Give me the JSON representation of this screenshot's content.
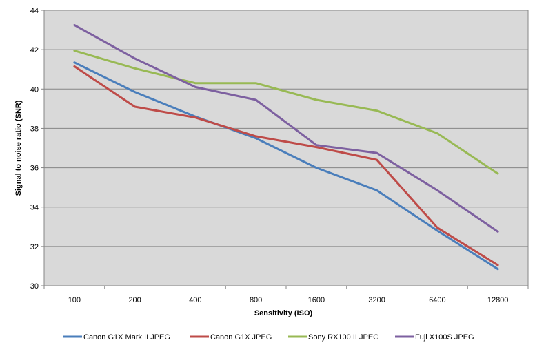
{
  "chart_data": {
    "type": "line",
    "title": "",
    "xlabel": "Sensitivity (ISO)",
    "ylabel": "Signal to noise ratio (SNR)",
    "categories": [
      "100",
      "200",
      "400",
      "800",
      "1600",
      "3200",
      "6400",
      "12800"
    ],
    "ylim": [
      30,
      44
    ],
    "yticks": [
      30,
      32,
      34,
      36,
      38,
      40,
      42,
      44
    ],
    "grid": "horizontal",
    "legend_position": "bottom",
    "plot_background": "#d9d9d9",
    "series": [
      {
        "name": "Canon G1X Mark II JPEG",
        "color": "#4a7ebb",
        "values": [
          41.35,
          39.85,
          38.6,
          37.5,
          36.0,
          34.85,
          32.8,
          30.85
        ]
      },
      {
        "name": "Canon G1X JPEG",
        "color": "#be4b48",
        "values": [
          41.15,
          39.1,
          38.55,
          37.6,
          37.05,
          36.4,
          32.95,
          31.05
        ]
      },
      {
        "name": "Sony RX100 II JPEG",
        "color": "#98b954",
        "values": [
          41.95,
          41.05,
          40.3,
          40.3,
          39.45,
          38.9,
          37.75,
          35.7
        ]
      },
      {
        "name": "Fuji X100S JPEG",
        "color": "#7d60a0",
        "values": [
          43.25,
          41.55,
          40.1,
          39.45,
          37.15,
          36.75,
          34.85,
          32.75
        ]
      }
    ]
  }
}
